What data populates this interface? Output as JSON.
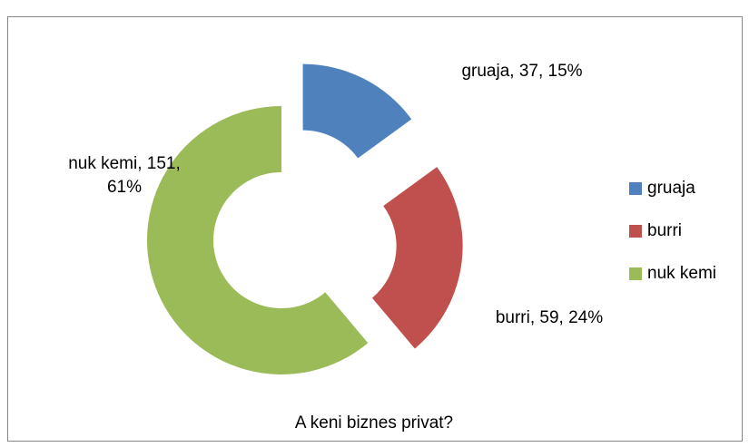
{
  "chart_data": {
    "type": "doughnut",
    "title": "A keni biznes privat?",
    "categories": [
      "gruaja",
      "burri",
      "nuk kemi"
    ],
    "values": [
      37,
      59,
      151
    ],
    "value_labels": [
      "gruaja, 37, 15%",
      "burri, 59, 24%",
      "nuk kemi, 151, 61%"
    ],
    "colors": [
      "#4f81bd",
      "#c0504d",
      "#9bbb59"
    ],
    "exploded": [
      true,
      true,
      false
    ],
    "legend": "right"
  }
}
